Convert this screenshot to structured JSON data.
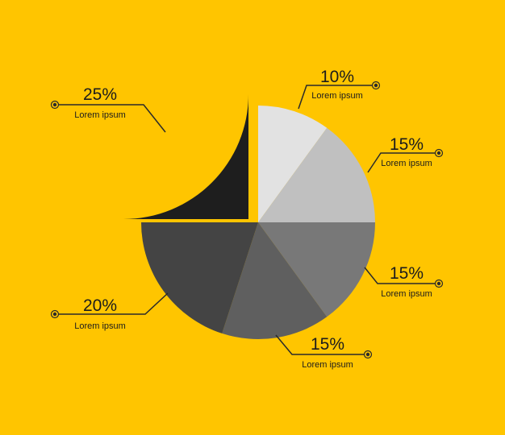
{
  "chart_data": {
    "type": "pie",
    "exploded_slice": "25%",
    "colors": {
      "background": "#ffc500",
      "leader_line": "#2a2a2a"
    },
    "slices": [
      {
        "value": 10,
        "label": "10%",
        "sublabel": "Lorem ipsum",
        "color": "#e2e2e2"
      },
      {
        "value": 15,
        "label": "15%",
        "sublabel": "Lorem ipsum",
        "color": "#c0c0c0"
      },
      {
        "value": 15,
        "label": "15%",
        "sublabel": "Lorem ipsum",
        "color": "#787878"
      },
      {
        "value": 15,
        "label": "15%",
        "sublabel": "Lorem ipsum",
        "color": "#5f5f5f"
      },
      {
        "value": 20,
        "label": "20%",
        "sublabel": "Lorem ipsum",
        "color": "#444444"
      },
      {
        "value": 25,
        "label": "25%",
        "sublabel": "Lorem ipsum",
        "color": "#1e1e1e"
      }
    ]
  }
}
